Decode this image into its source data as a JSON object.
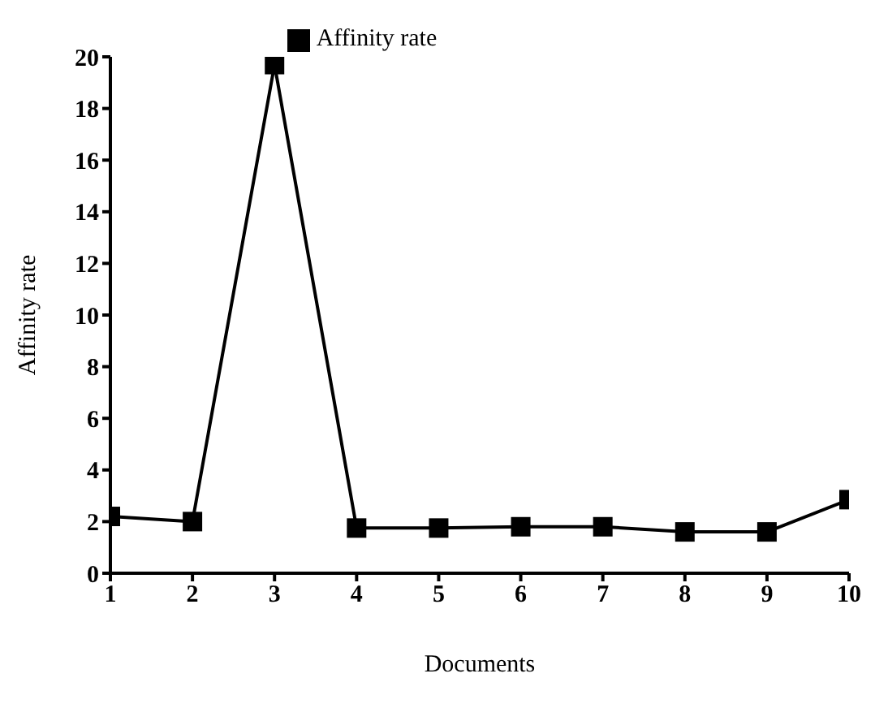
{
  "chart_data": {
    "type": "line",
    "xlabel": "Documents",
    "ylabel": "Affinity rate",
    "x": [
      1,
      2,
      3,
      4,
      5,
      6,
      7,
      8,
      9,
      10
    ],
    "series": [
      {
        "name": "Affinity rate",
        "color": "#000000",
        "values": [
          2.2,
          2.0,
          19.7,
          1.75,
          1.75,
          1.8,
          1.8,
          1.6,
          1.6,
          2.85
        ]
      }
    ],
    "xlim": [
      1,
      10
    ],
    "xticks": [
      1,
      2,
      3,
      4,
      5,
      6,
      7,
      8,
      9,
      10
    ],
    "ylim": [
      0,
      20
    ],
    "yticks": [
      0,
      2,
      4,
      6,
      8,
      10,
      12,
      14,
      16,
      18,
      20
    ],
    "grid": false,
    "legend": "top",
    "marker": "square",
    "line_style": "solid"
  }
}
